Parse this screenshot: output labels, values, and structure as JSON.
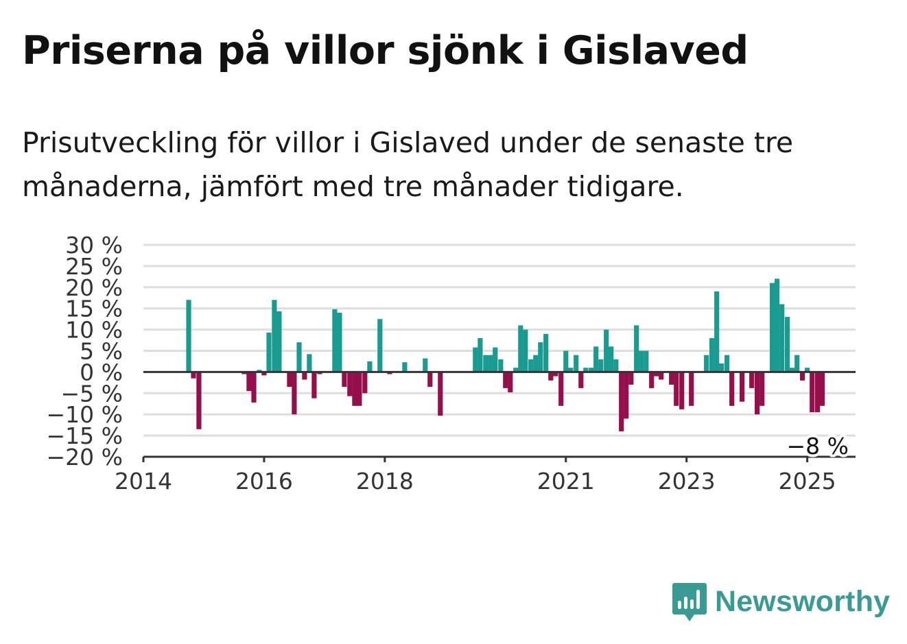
{
  "title": "Priserna på villor sjönk i Gislaved",
  "subtitle": "Prisutveckling för villor i Gislaved under de senaste tre månaderna, jämfört med tre månader tidigare.",
  "logo": {
    "text": "Newsworthy",
    "icon": "newsworthy-bar-chart-icon"
  },
  "colors": {
    "positive": "#1a9b92",
    "negative": "#95104b",
    "grid": "#dedede",
    "axis": "#333333"
  },
  "chart_data": {
    "type": "bar",
    "title": "",
    "xlabel": "",
    "ylabel": "",
    "ylim": [
      -20,
      30
    ],
    "y_ticks": [
      30,
      25,
      20,
      15,
      10,
      5,
      0,
      -5,
      -10,
      -15,
      -20
    ],
    "y_tick_labels": [
      "30 %",
      "25 %",
      "20 %",
      "15 %",
      "10 %",
      "5 %",
      "0 %",
      "−5 %",
      "−10 %",
      "−15 %",
      "−20 %"
    ],
    "x_range": [
      2014.0,
      2025.8
    ],
    "x_ticks": [
      2014,
      2016,
      2018,
      2021,
      2023,
      2025
    ],
    "x_tick_labels": [
      "2014",
      "2016",
      "2018",
      "2021",
      "2023",
      "2025"
    ],
    "grid": true,
    "annotation": {
      "text": "−8 %",
      "x": 2025.25,
      "y": -8
    },
    "x": [
      2014.75,
      2014.83,
      2014.92,
      2015.67,
      2015.75,
      2015.83,
      2015.92,
      2016.0,
      2016.08,
      2016.17,
      2016.25,
      2016.33,
      2016.42,
      2016.5,
      2016.58,
      2016.67,
      2016.75,
      2016.83,
      2016.92,
      2017.17,
      2017.25,
      2017.33,
      2017.42,
      2017.5,
      2017.58,
      2017.67,
      2017.75,
      2017.83,
      2017.92,
      2018.08,
      2018.33,
      2018.67,
      2018.75,
      2018.92,
      2019.0,
      2019.5,
      2019.58,
      2019.67,
      2019.75,
      2019.83,
      2019.92,
      2020.0,
      2020.08,
      2020.17,
      2020.25,
      2020.33,
      2020.42,
      2020.5,
      2020.58,
      2020.67,
      2020.75,
      2020.83,
      2020.92,
      2021.0,
      2021.08,
      2021.17,
      2021.25,
      2021.33,
      2021.42,
      2021.5,
      2021.58,
      2021.67,
      2021.75,
      2021.83,
      2021.92,
      2022.0,
      2022.08,
      2022.17,
      2022.25,
      2022.33,
      2022.42,
      2022.5,
      2022.58,
      2022.75,
      2022.83,
      2022.92,
      2023.08,
      2023.33,
      2023.42,
      2023.5,
      2023.58,
      2023.67,
      2023.75,
      2023.92,
      2024.08,
      2024.17,
      2024.25,
      2024.42,
      2024.5,
      2024.58,
      2024.67,
      2024.75,
      2024.83,
      2024.92,
      2025.0,
      2025.08,
      2025.17,
      2025.25
    ],
    "values": [
      17,
      -1.5,
      -13.5,
      -0.5,
      -4.5,
      -7.2,
      0.5,
      -0.8,
      9.3,
      17,
      14.3,
      0,
      -3.5,
      -10,
      7,
      -1.8,
      4.2,
      -6.2,
      -0.5,
      14.8,
      14,
      -3.5,
      -5.7,
      -8,
      -8,
      -5,
      2.5,
      0,
      12.5,
      -0.5,
      2.3,
      3.2,
      -3.5,
      -10.3,
      0,
      5.8,
      8,
      4,
      4,
      5.8,
      3,
      -3.8,
      -4.8,
      1,
      11,
      10,
      3,
      4,
      7,
      9,
      -2,
      -1,
      -8,
      5,
      1,
      4,
      -3.8,
      1,
      1,
      6,
      3,
      10,
      6,
      3,
      -14,
      -11,
      -3,
      11,
      5,
      5,
      -3.8,
      -1,
      -1.8,
      -3,
      -8,
      -8.8,
      -8,
      4,
      8,
      19,
      2,
      4,
      -8,
      -7,
      -3.8,
      -10,
      -8,
      21,
      22,
      16,
      13,
      1,
      4,
      -2,
      1,
      -9.5,
      -9.5,
      -8
    ]
  }
}
